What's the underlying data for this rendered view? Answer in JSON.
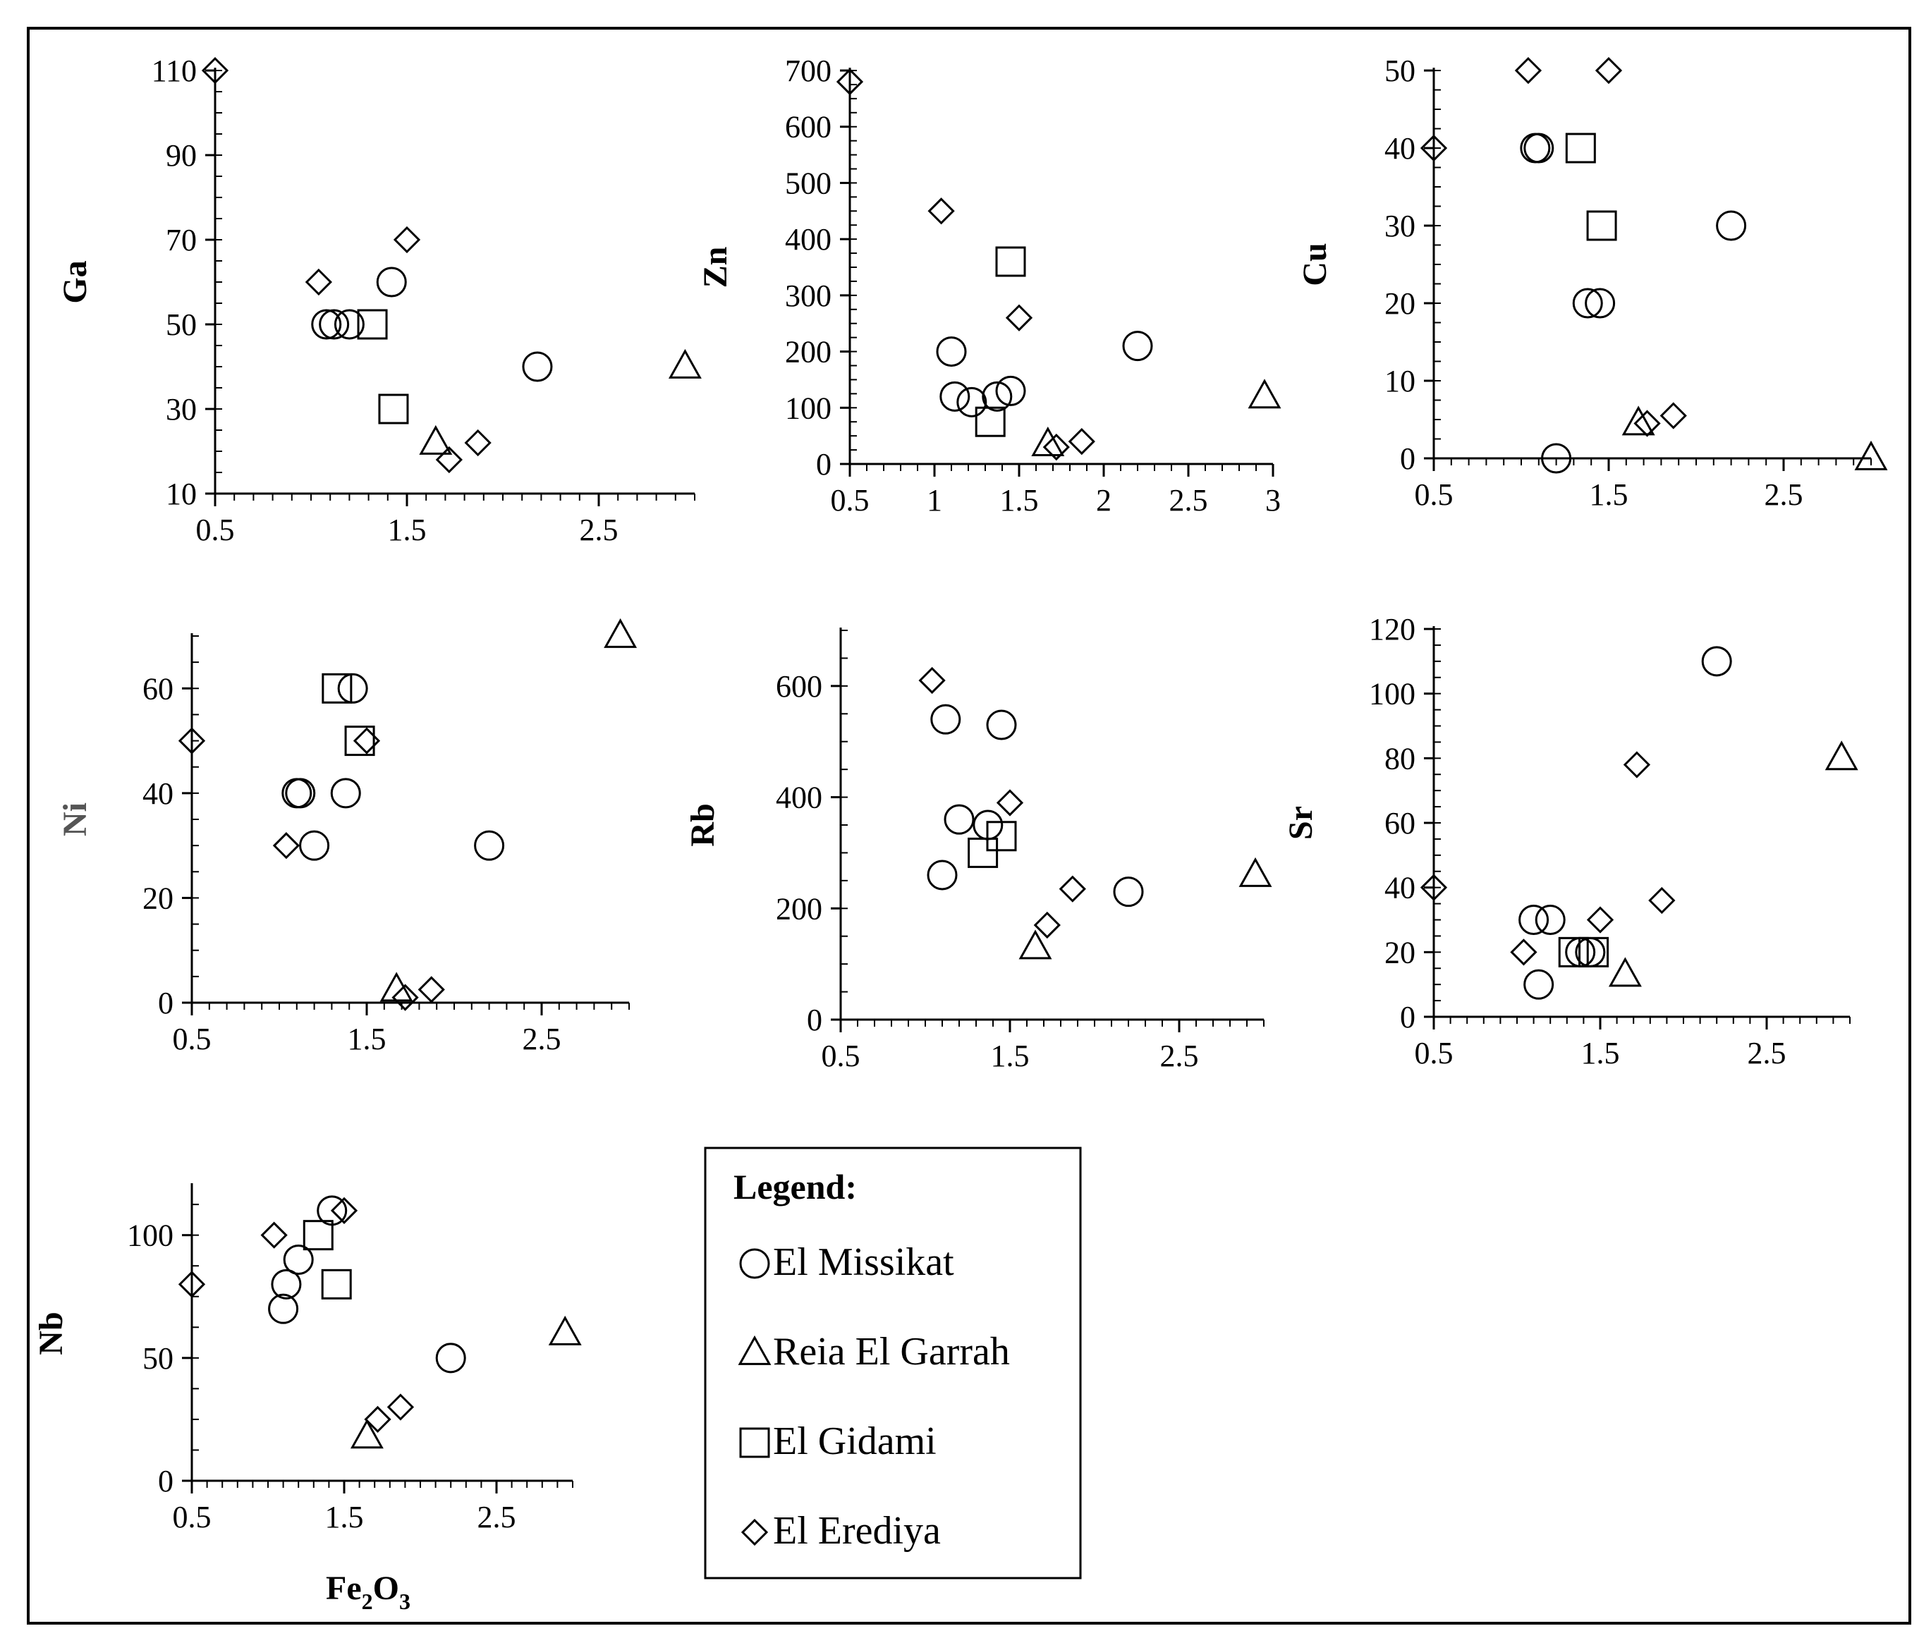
{
  "series": [
    {
      "key": "missikat",
      "name": "El Missikat",
      "marker": "circle"
    },
    {
      "key": "reia",
      "name": "Reia El Garrah",
      "marker": "triangle"
    },
    {
      "key": "gidami",
      "name": "El Gidami",
      "marker": "square"
    },
    {
      "key": "erediya",
      "name": "El Erediya",
      "marker": "diamond"
    }
  ],
  "legend": {
    "title": "Legend:"
  },
  "x_label": {
    "main": "Fe",
    "sub1": "2",
    "mid": "O",
    "sub2": "3"
  },
  "chart_data": [
    {
      "type": "scatter",
      "ylabel": "Ga",
      "xlim": [
        0.5,
        3.0
      ],
      "ylim": [
        10,
        110
      ],
      "xticks": [
        0.5,
        1.5,
        2.5
      ],
      "xtick_labels": [
        "0.5",
        "1.5",
        "2.5"
      ],
      "yticks": [
        10,
        30,
        50,
        70,
        90,
        110
      ],
      "ytick_labels": [
        "10",
        "30",
        "50",
        "70",
        "90",
        "110"
      ],
      "points": {
        "missikat": [
          [
            1.08,
            50
          ],
          [
            1.12,
            50
          ],
          [
            1.2,
            50
          ],
          [
            1.42,
            60
          ],
          [
            2.18,
            40
          ]
        ],
        "reia": [
          [
            1.65,
            22
          ],
          [
            2.95,
            40
          ]
        ],
        "gidami": [
          [
            1.32,
            50
          ],
          [
            1.43,
            30
          ]
        ],
        "erediya": [
          [
            0.5,
            110
          ],
          [
            1.04,
            60
          ],
          [
            1.5,
            70
          ],
          [
            1.72,
            18
          ],
          [
            1.87,
            22
          ]
        ]
      }
    },
    {
      "type": "scatter",
      "ylabel": "Zn",
      "xlim": [
        0.5,
        3.0
      ],
      "ylim": [
        0,
        700
      ],
      "xticks": [
        0.5,
        1,
        1.5,
        2,
        2.5,
        3
      ],
      "xtick_labels": [
        "0.5",
        "1",
        "1.5",
        "2",
        "2.5",
        "3"
      ],
      "yticks": [
        0,
        100,
        200,
        300,
        400,
        500,
        600,
        700
      ],
      "ytick_labels": [
        "0",
        "100",
        "200",
        "300",
        "400",
        "500",
        "600",
        "700"
      ],
      "points": {
        "missikat": [
          [
            1.1,
            200
          ],
          [
            1.12,
            120
          ],
          [
            1.22,
            110
          ],
          [
            1.37,
            120
          ],
          [
            1.45,
            130
          ],
          [
            2.2,
            210
          ]
        ],
        "reia": [
          [
            1.67,
            35
          ],
          [
            2.95,
            120
          ]
        ],
        "gidami": [
          [
            1.33,
            75
          ],
          [
            1.45,
            360
          ]
        ],
        "erediya": [
          [
            0.5,
            680
          ],
          [
            1.04,
            450
          ],
          [
            1.5,
            260
          ],
          [
            1.72,
            30
          ],
          [
            1.87,
            40
          ]
        ]
      }
    },
    {
      "type": "scatter",
      "ylabel": "Cu",
      "xlim": [
        0.5,
        3.0
      ],
      "ylim": [
        0,
        50
      ],
      "xticks": [
        0.5,
        1.5,
        2.5
      ],
      "xtick_labels": [
        "0.5",
        "1.5",
        "2.5"
      ],
      "yticks": [
        0,
        10,
        20,
        30,
        40,
        50
      ],
      "ytick_labels": [
        "0",
        "10",
        "20",
        "30",
        "40",
        "50"
      ],
      "points": {
        "missikat": [
          [
            1.08,
            40
          ],
          [
            1.1,
            40
          ],
          [
            1.2,
            0
          ],
          [
            1.38,
            20
          ],
          [
            1.45,
            20
          ],
          [
            2.2,
            30
          ]
        ],
        "reia": [
          [
            1.67,
            4.5
          ],
          [
            3.0,
            0
          ]
        ],
        "gidami": [
          [
            1.34,
            40
          ],
          [
            1.46,
            30
          ]
        ],
        "erediya": [
          [
            0.5,
            40
          ],
          [
            1.04,
            50
          ],
          [
            1.5,
            50
          ],
          [
            1.72,
            4.5
          ],
          [
            1.87,
            5.5
          ]
        ]
      }
    },
    {
      "type": "scatter",
      "ylabel": "Ni",
      "xlim": [
        0.5,
        3.0
      ],
      "ylim": [
        0,
        70
      ],
      "xticks": [
        0.5,
        1.5,
        2.5
      ],
      "xtick_labels": [
        "0.5",
        "1.5",
        "2.5"
      ],
      "yticks": [
        0,
        20,
        40,
        60
      ],
      "ytick_labels": [
        "0",
        "20",
        "40",
        "60"
      ],
      "points": {
        "missikat": [
          [
            1.1,
            40
          ],
          [
            1.12,
            40
          ],
          [
            1.2,
            30
          ],
          [
            1.38,
            40
          ],
          [
            1.42,
            60
          ],
          [
            2.2,
            30
          ]
        ],
        "reia": [
          [
            1.67,
            2.5
          ],
          [
            2.95,
            70
          ]
        ],
        "gidami": [
          [
            1.33,
            60
          ],
          [
            1.46,
            50
          ]
        ],
        "erediya": [
          [
            0.5,
            50
          ],
          [
            1.04,
            30
          ],
          [
            1.5,
            50
          ],
          [
            1.72,
            1
          ],
          [
            1.87,
            2.5
          ]
        ]
      }
    },
    {
      "type": "scatter",
      "ylabel": "Rb",
      "xlim": [
        0.5,
        3.0
      ],
      "ylim": [
        0,
        700
      ],
      "xticks": [
        0.5,
        1.5,
        2.5
      ],
      "xtick_labels": [
        "0.5",
        "1.5",
        "2.5"
      ],
      "yticks": [
        0,
        200,
        400,
        600
      ],
      "ytick_labels": [
        "0",
        "200",
        "400",
        "600"
      ],
      "points": {
        "missikat": [
          [
            1.1,
            260
          ],
          [
            1.12,
            540
          ],
          [
            1.2,
            360
          ],
          [
            1.37,
            350
          ],
          [
            1.45,
            530
          ],
          [
            2.2,
            230
          ]
        ],
        "reia": [
          [
            1.65,
            130
          ],
          [
            2.95,
            260
          ]
        ],
        "gidami": [
          [
            1.34,
            300
          ],
          [
            1.45,
            330
          ]
        ],
        "erediya": [
          [
            1.04,
            610
          ],
          [
            1.5,
            390
          ],
          [
            1.72,
            170
          ],
          [
            1.87,
            235
          ]
        ]
      }
    },
    {
      "type": "scatter",
      "ylabel": "Sr",
      "xlim": [
        0.5,
        3.0
      ],
      "ylim": [
        0,
        120
      ],
      "xticks": [
        0.5,
        1.5,
        2.5
      ],
      "xtick_labels": [
        "0.5",
        "1.5",
        "2.5"
      ],
      "yticks": [
        0,
        20,
        40,
        60,
        80,
        100,
        120
      ],
      "ytick_labels": [
        "0",
        "20",
        "40",
        "60",
        "80",
        "100",
        "120"
      ],
      "points": {
        "missikat": [
          [
            1.1,
            30
          ],
          [
            1.13,
            10
          ],
          [
            1.2,
            30
          ],
          [
            1.38,
            20
          ],
          [
            1.44,
            20
          ],
          [
            2.2,
            110
          ]
        ],
        "reia": [
          [
            1.65,
            13
          ],
          [
            2.95,
            80
          ]
        ],
        "gidami": [
          [
            1.34,
            20
          ],
          [
            1.46,
            20
          ]
        ],
        "erediya": [
          [
            0.5,
            40
          ],
          [
            1.04,
            20
          ],
          [
            1.5,
            30
          ],
          [
            1.72,
            78
          ],
          [
            1.87,
            36
          ]
        ]
      }
    },
    {
      "type": "scatter",
      "ylabel": "Nb",
      "xlim": [
        0.5,
        3.0
      ],
      "ylim": [
        0,
        120
      ],
      "xticks": [
        0.5,
        1.5,
        2.5
      ],
      "xtick_labels": [
        "0.5",
        "1.5",
        "2.5"
      ],
      "yticks": [
        0,
        50,
        100
      ],
      "ytick_labels": [
        "0",
        "50",
        "100"
      ],
      "points": {
        "missikat": [
          [
            1.1,
            70
          ],
          [
            1.12,
            80
          ],
          [
            1.2,
            90
          ],
          [
            1.42,
            110
          ],
          [
            2.2,
            50
          ]
        ],
        "reia": [
          [
            1.65,
            18
          ],
          [
            2.95,
            60
          ]
        ],
        "gidami": [
          [
            1.33,
            100
          ],
          [
            1.45,
            80
          ]
        ],
        "erediya": [
          [
            0.5,
            80
          ],
          [
            1.04,
            100
          ],
          [
            1.5,
            110
          ],
          [
            1.72,
            25
          ],
          [
            1.87,
            30
          ]
        ]
      }
    }
  ]
}
